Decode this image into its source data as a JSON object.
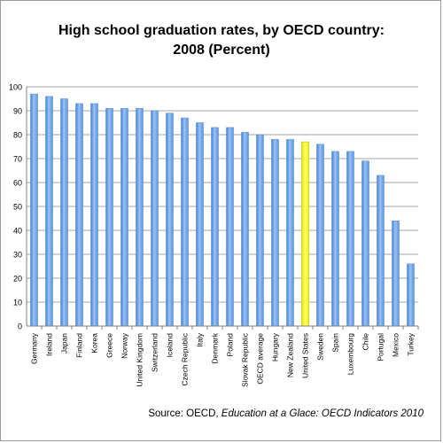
{
  "title_line1": "High school graduation rates, by OECD country:",
  "title_line2": "2008 (Percent)",
  "source": {
    "prefix": "Source: OECD, ",
    "publication": "Education at a Glace: OECD Indicators 2010"
  },
  "chart_data": {
    "type": "bar",
    "title": "High school graduation rates, by OECD country: 2008 (Percent)",
    "xlabel": "",
    "ylabel": "",
    "ylim": [
      0,
      100
    ],
    "yticks": [
      0,
      10,
      20,
      30,
      40,
      50,
      60,
      70,
      80,
      90,
      100
    ],
    "grid": true,
    "legend": "none",
    "categories": [
      "Germany",
      "Ireland",
      "Japan",
      "Finland",
      "Korea",
      "Greece",
      "Norway",
      "United Kingdom",
      "Switzerland",
      "Iceland",
      "Czech Republic",
      "Italy",
      "Denmark",
      "Poland",
      "Slovak Republic",
      "OECD average",
      "Hungary",
      "New Zealand",
      "United States",
      "Sweden",
      "Spain",
      "Luxembourg",
      "Chile",
      "Portugal",
      "Mexico",
      "Turkey"
    ],
    "values": [
      97,
      96,
      95,
      93,
      93,
      91,
      91,
      91,
      90,
      89,
      87,
      85,
      83,
      83,
      81,
      80,
      78,
      78,
      77,
      76,
      73,
      73,
      69,
      63,
      44,
      26
    ],
    "highlight_category": "United States",
    "colors": {
      "bar": "#6ea3e6",
      "highlight": "#ffff33",
      "grid": "#a6a6a6"
    }
  }
}
